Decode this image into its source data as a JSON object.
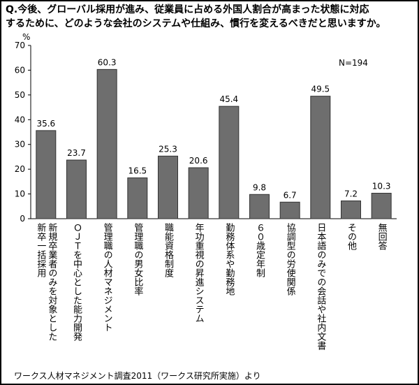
{
  "chart_data": {
    "type": "bar",
    "title": [
      "Q.今後、グローバル採用が進み、従業員に占める外国人割合が高まった状態に対応",
      "するために、どのような会社のシステムや仕組み、慣行を変えるべきだと思いますか。"
    ],
    "y_unit": "%",
    "annotation": "N=194",
    "source": "ワークス人材マネジメント調査2011（ワークス研究所実施）より",
    "categories": [
      [
        "新規卒業者のみを対象とした",
        "新卒一括採用"
      ],
      [
        "ＯＪＴを中心とした能力開発"
      ],
      [
        "管理職の人材マネジメント"
      ],
      [
        "管理職の男女比率"
      ],
      [
        "職能資格制度"
      ],
      [
        "年功重視の昇進システム"
      ],
      [
        "勤務体系や勤務地"
      ],
      [
        "６０歳定年制"
      ],
      [
        "協調型の労使関係"
      ],
      [
        "日本語のみでの会話や社内文書"
      ],
      [
        "その他"
      ],
      [
        "無回答"
      ]
    ],
    "values": [
      35.6,
      23.7,
      60.3,
      16.5,
      25.3,
      20.6,
      45.4,
      9.8,
      6.7,
      49.5,
      7.2,
      10.3
    ],
    "color": "#6e6e6e",
    "ylim": [
      0,
      70
    ],
    "yticks": [
      0,
      10,
      20,
      30,
      40,
      50,
      60,
      70
    ],
    "grid": false
  }
}
